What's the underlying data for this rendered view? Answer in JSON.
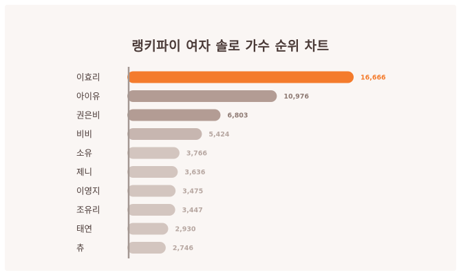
{
  "chart_data": {
    "type": "bar",
    "orientation": "horizontal",
    "title": "랭키파이 여자 솔로 가수 순위 차트",
    "categories": [
      "이효리",
      "아이유",
      "권은비",
      "비비",
      "소유",
      "제니",
      "이영지",
      "조유리",
      "태연",
      "츄"
    ],
    "values": [
      16666,
      10976,
      6803,
      5424,
      3766,
      3636,
      3475,
      3447,
      2930,
      2746
    ],
    "value_labels": [
      "16,666",
      "10,976",
      "6,803",
      "5,424",
      "3,766",
      "3,636",
      "3,475",
      "3,447",
      "2,930",
      "2,746"
    ],
    "grid": false,
    "legend": "none"
  },
  "colors": {
    "highlight_bar": "#f47b2c",
    "highlight_text": "#f47b2c",
    "bar_shades": [
      "#b39c94",
      "#b39c94",
      "#c7b6b0",
      "#d3c5bf",
      "#d3c5bf",
      "#d3c5bf",
      "#d3c5bf",
      "#d3c5bf",
      "#d3c5bf"
    ],
    "value_text": "#8e7a73",
    "value_text_light": "#b7a7a1",
    "axis": "#a39792",
    "background": "#faf6f4"
  }
}
